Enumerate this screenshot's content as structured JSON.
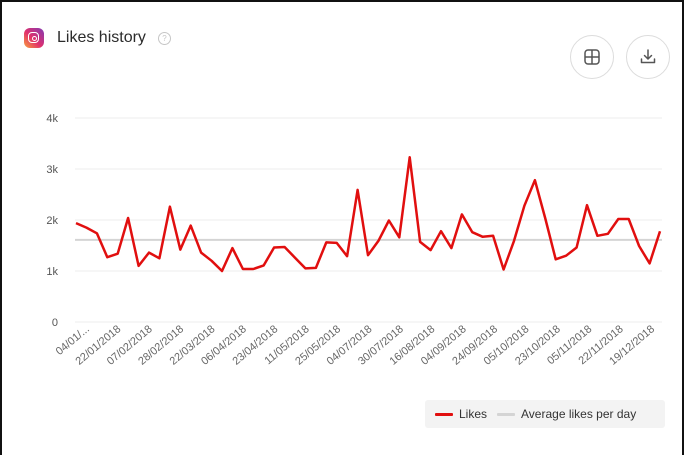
{
  "header": {
    "title": "Likes history",
    "help_glyph": "?",
    "icon": "instagram-icon"
  },
  "toolbar": {
    "grid_icon": "grid-icon",
    "download_icon": "download-icon"
  },
  "colors": {
    "likes": "#e10f0f",
    "average": "#d4d4d4",
    "grid": "#ececec"
  },
  "chart_data": {
    "type": "line",
    "ylim": [
      0,
      4000
    ],
    "yticks": [
      {
        "value": 0,
        "label": "0"
      },
      {
        "value": 1000,
        "label": "1k"
      },
      {
        "value": 2000,
        "label": "2k"
      },
      {
        "value": 3000,
        "label": "3k"
      },
      {
        "value": 4000,
        "label": "4k"
      }
    ],
    "xtick_labels": [
      "04/01/...",
      "22/01/2018",
      "07/02/2018",
      "28/02/2018",
      "22/03/2018",
      "06/04/2018",
      "23/04/2018",
      "11/05/2018",
      "25/05/2018",
      "04/07/2018",
      "30/07/2018",
      "16/08/2018",
      "04/09/2018",
      "24/09/2018",
      "05/10/2018",
      "23/10/2018",
      "05/11/2018",
      "22/11/2018",
      "19/12/2018"
    ],
    "series": [
      {
        "name": "Likes",
        "values": [
          1940,
          1850,
          1740,
          1270,
          1340,
          2040,
          1100,
          1360,
          1250,
          2260,
          1420,
          1890,
          1360,
          1200,
          1000,
          1450,
          1040,
          1040,
          1110,
          1460,
          1470,
          1260,
          1050,
          1060,
          1560,
          1550,
          1290,
          2590,
          1310,
          1590,
          1990,
          1660,
          3230,
          1570,
          1410,
          1780,
          1450,
          2110,
          1760,
          1670,
          1690,
          1030,
          1590,
          2280,
          2780,
          2030,
          1230,
          1300,
          1460,
          2290,
          1690,
          1730,
          2020,
          2020,
          1490,
          1150,
          1780
        ]
      },
      {
        "name": "Average likes per day",
        "values": [
          1610
        ]
      }
    ],
    "legend": [
      "Likes",
      "Average likes per day"
    ],
    "legend_position": "bottom-right",
    "grid": true
  }
}
